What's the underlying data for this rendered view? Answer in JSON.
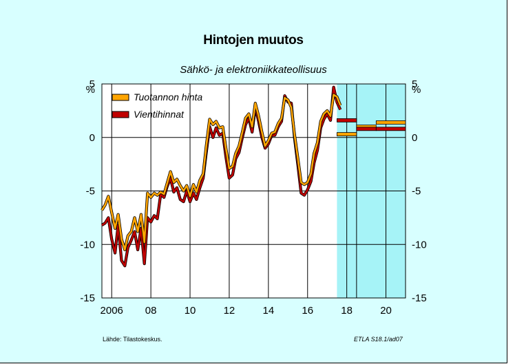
{
  "title": "Hintojen muutos",
  "subtitle": "Sähkö- ja elektroniikkateollisuus",
  "source": "Lähde:   Tilastokeskus.",
  "code": "ETLA S18.1/ad07",
  "colors": {
    "background": "#d8ffff",
    "forecast": "#a6f3f7",
    "grid": "#000000",
    "series1": "#ffa500",
    "series2": "#c00000"
  },
  "chart_data": {
    "type": "line",
    "ylabel_left": "%",
    "ylabel_right": "%",
    "ylim": [
      -15,
      5
    ],
    "yticks": [
      -15,
      -10,
      -5,
      0,
      5
    ],
    "yticks_labels": [
      "-15",
      "-10",
      "-5",
      "0",
      "5"
    ],
    "xlim": [
      2005.5,
      2021.0
    ],
    "xticks": [
      2006,
      2008,
      2010,
      2012,
      2014,
      2016,
      2018,
      2020
    ],
    "xticks_labels": [
      "2006",
      "08",
      "10",
      "12",
      "14",
      "16",
      "18",
      "20"
    ],
    "grid": true,
    "legend_position": "top-left",
    "forecast_shading": [
      2017.5,
      2021.0
    ],
    "forecast_divider": 2018.5,
    "series": [
      {
        "name": "Tuotannon hinta",
        "color": "#ffa500",
        "points": [
          [
            2005.5,
            -6.8
          ],
          [
            2005.67,
            -6.3
          ],
          [
            2005.83,
            -5.5
          ],
          [
            2006.0,
            -7.0
          ],
          [
            2006.17,
            -8.5
          ],
          [
            2006.33,
            -7.2
          ],
          [
            2006.5,
            -9.5
          ],
          [
            2006.67,
            -10.5
          ],
          [
            2006.83,
            -9.2
          ],
          [
            2007.0,
            -8.8
          ],
          [
            2007.17,
            -7.5
          ],
          [
            2007.33,
            -8.8
          ],
          [
            2007.5,
            -7.2
          ],
          [
            2007.67,
            -9.8
          ],
          [
            2007.83,
            -5.2
          ],
          [
            2008.0,
            -5.6
          ],
          [
            2008.17,
            -5.2
          ],
          [
            2008.33,
            -5.4
          ],
          [
            2008.5,
            -5.1
          ],
          [
            2008.67,
            -5.3
          ],
          [
            2008.83,
            -4.3
          ],
          [
            2009.0,
            -3.2
          ],
          [
            2009.17,
            -4.2
          ],
          [
            2009.33,
            -3.9
          ],
          [
            2009.5,
            -4.5
          ],
          [
            2009.67,
            -5.0
          ],
          [
            2009.83,
            -4.5
          ],
          [
            2010.0,
            -5.5
          ],
          [
            2010.17,
            -4.4
          ],
          [
            2010.33,
            -5.1
          ],
          [
            2010.5,
            -4.0
          ],
          [
            2010.67,
            -3.4
          ],
          [
            2010.83,
            -0.8
          ],
          [
            2011.0,
            1.7
          ],
          [
            2011.17,
            1.2
          ],
          [
            2011.33,
            1.5
          ],
          [
            2011.5,
            0.9
          ],
          [
            2011.67,
            1.0
          ],
          [
            2011.83,
            -1.0
          ],
          [
            2012.0,
            -2.9
          ],
          [
            2012.17,
            -2.7
          ],
          [
            2012.33,
            -1.5
          ],
          [
            2012.5,
            -0.8
          ],
          [
            2012.67,
            0.5
          ],
          [
            2012.83,
            1.8
          ],
          [
            2013.0,
            2.2
          ],
          [
            2013.17,
            1.0
          ],
          [
            2013.33,
            3.2
          ],
          [
            2013.5,
            2.0
          ],
          [
            2013.67,
            0.5
          ],
          [
            2013.83,
            -0.8
          ],
          [
            2014.0,
            -0.3
          ],
          [
            2014.17,
            0.4
          ],
          [
            2014.33,
            0.5
          ],
          [
            2014.5,
            1.3
          ],
          [
            2014.67,
            1.8
          ],
          [
            2014.83,
            3.7
          ],
          [
            2015.0,
            3.5
          ],
          [
            2015.17,
            2.8
          ],
          [
            2015.33,
            0.3
          ],
          [
            2015.5,
            -1.9
          ],
          [
            2015.67,
            -4.2
          ],
          [
            2015.83,
            -4.4
          ],
          [
            2016.0,
            -4.2
          ],
          [
            2016.17,
            -3.4
          ],
          [
            2016.33,
            -1.5
          ],
          [
            2016.5,
            -0.5
          ],
          [
            2016.67,
            1.5
          ],
          [
            2016.83,
            2.2
          ],
          [
            2017.0,
            2.5
          ],
          [
            2017.17,
            2.0
          ],
          [
            2017.33,
            4.0
          ],
          [
            2017.5,
            3.8
          ],
          [
            2017.67,
            3.0
          ]
        ]
      },
      {
        "name": "Vientihinnat",
        "color": "#c00000",
        "points": [
          [
            2005.5,
            -8.2
          ],
          [
            2005.67,
            -8.0
          ],
          [
            2005.83,
            -7.5
          ],
          [
            2006.0,
            -9.5
          ],
          [
            2006.17,
            -10.8
          ],
          [
            2006.33,
            -8.2
          ],
          [
            2006.5,
            -11.5
          ],
          [
            2006.67,
            -12.0
          ],
          [
            2006.83,
            -10.3
          ],
          [
            2007.0,
            -9.6
          ],
          [
            2007.17,
            -8.8
          ],
          [
            2007.33,
            -10.5
          ],
          [
            2007.5,
            -8.5
          ],
          [
            2007.67,
            -11.8
          ],
          [
            2007.83,
            -7.5
          ],
          [
            2008.0,
            -7.9
          ],
          [
            2008.17,
            -7.3
          ],
          [
            2008.33,
            -7.6
          ],
          [
            2008.5,
            -5.3
          ],
          [
            2008.67,
            -5.6
          ],
          [
            2008.83,
            -4.6
          ],
          [
            2009.0,
            -3.8
          ],
          [
            2009.17,
            -5.1
          ],
          [
            2009.33,
            -4.7
          ],
          [
            2009.5,
            -5.8
          ],
          [
            2009.67,
            -6.0
          ],
          [
            2009.83,
            -5.0
          ],
          [
            2010.0,
            -6.0
          ],
          [
            2010.17,
            -5.2
          ],
          [
            2010.33,
            -5.8
          ],
          [
            2010.5,
            -4.7
          ],
          [
            2010.67,
            -3.8
          ],
          [
            2010.83,
            -1.4
          ],
          [
            2011.0,
            1.0
          ],
          [
            2011.17,
            0.0
          ],
          [
            2011.33,
            0.9
          ],
          [
            2011.5,
            0.2
          ],
          [
            2011.67,
            0.4
          ],
          [
            2011.83,
            -1.8
          ],
          [
            2012.0,
            -3.8
          ],
          [
            2012.17,
            -3.5
          ],
          [
            2012.33,
            -2.0
          ],
          [
            2012.5,
            -1.4
          ],
          [
            2012.67,
            0.0
          ],
          [
            2012.83,
            1.2
          ],
          [
            2013.0,
            1.8
          ],
          [
            2013.17,
            0.5
          ],
          [
            2013.33,
            2.8
          ],
          [
            2013.5,
            1.5
          ],
          [
            2013.67,
            0.0
          ],
          [
            2013.83,
            -1.0
          ],
          [
            2014.0,
            -0.6
          ],
          [
            2014.17,
            0.2
          ],
          [
            2014.33,
            0.2
          ],
          [
            2014.5,
            1.0
          ],
          [
            2014.67,
            1.5
          ],
          [
            2014.83,
            3.9
          ],
          [
            2015.0,
            3.3
          ],
          [
            2015.17,
            3.2
          ],
          [
            2015.33,
            0.0
          ],
          [
            2015.5,
            -2.5
          ],
          [
            2015.67,
            -5.2
          ],
          [
            2015.83,
            -5.4
          ],
          [
            2016.0,
            -4.9
          ],
          [
            2016.17,
            -4.1
          ],
          [
            2016.33,
            -2.4
          ],
          [
            2016.5,
            -1.2
          ],
          [
            2016.67,
            0.9
          ],
          [
            2016.83,
            1.7
          ],
          [
            2017.0,
            2.2
          ],
          [
            2017.17,
            1.6
          ],
          [
            2017.33,
            4.7
          ],
          [
            2017.5,
            3.3
          ],
          [
            2017.67,
            2.6
          ]
        ]
      }
    ],
    "forecasts": [
      {
        "series": "Tuotannon hinta",
        "segments": [
          [
            2017.5,
            2018.5,
            0.3
          ],
          [
            2018.5,
            2019.5,
            1.0
          ],
          [
            2019.5,
            2021.0,
            1.4
          ]
        ]
      },
      {
        "series": "Vientihinnat",
        "segments": [
          [
            2017.5,
            2018.5,
            1.6
          ],
          [
            2018.5,
            2019.5,
            0.8
          ],
          [
            2019.5,
            2021.0,
            0.8
          ]
        ]
      }
    ]
  }
}
